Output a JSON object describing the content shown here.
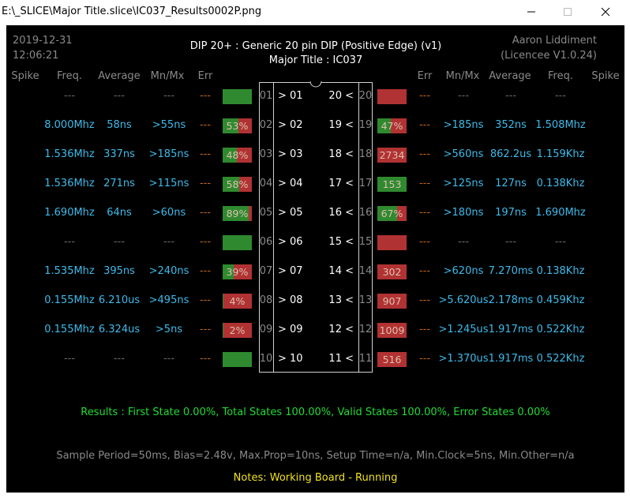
{
  "window": {
    "title": "E:\\_SLICE\\Major Title.slice\\IC037_Results0002P.png",
    "min_icon": "minimize-icon",
    "max_icon": "maximize-icon",
    "close_icon": "close-icon"
  },
  "header": {
    "date": "2019-12-31",
    "time": "12:06:21",
    "chip_title": "DIP 20+  :  Generic 20 pin DIP (Positive Edge) (v1)",
    "major_title": "Major Title : IC037",
    "author": "Aaron Liddiment",
    "licence": "(Licencee V1.0.24)"
  },
  "columns": {
    "spike": "Spike",
    "freq": "Freq.",
    "average": "Average",
    "mnmx": "Mn/Mx",
    "err": "Err"
  },
  "left_pins": [
    {
      "num": "01",
      "label": "> 01",
      "freq": "---",
      "avg": "---",
      "mnmx": "---",
      "err": "---",
      "bar": {
        "text": "",
        "pct": 100
      }
    },
    {
      "num": "02",
      "label": "> 02",
      "freq": "8.000Mhz",
      "avg": "58ns",
      "mnmx": ">55ns",
      "err": "---",
      "bar": {
        "text": "53%",
        "pct": 53
      }
    },
    {
      "num": "03",
      "label": "> 03",
      "freq": "1.536Mhz",
      "avg": "337ns",
      "mnmx": ">185ns",
      "err": "---",
      "bar": {
        "text": "48%",
        "pct": 48
      }
    },
    {
      "num": "04",
      "label": "> 04",
      "freq": "1.536Mhz",
      "avg": "271ns",
      "mnmx": ">115ns",
      "err": "---",
      "bar": {
        "text": "58%",
        "pct": 58
      }
    },
    {
      "num": "05",
      "label": "> 05",
      "freq": "1.690Mhz",
      "avg": "64ns",
      "mnmx": ">60ns",
      "err": "---",
      "bar": {
        "text": "89%",
        "pct": 89
      }
    },
    {
      "num": "06",
      "label": "> 06",
      "freq": "---",
      "avg": "---",
      "mnmx": "---",
      "err": "---",
      "bar": {
        "text": "",
        "pct": 100
      }
    },
    {
      "num": "07",
      "label": "> 07",
      "freq": "1.535Mhz",
      "avg": "395ns",
      "mnmx": ">240ns",
      "err": "---",
      "bar": {
        "text": "39%",
        "pct": 39
      }
    },
    {
      "num": "08",
      "label": "> 08",
      "freq": "0.155Mhz",
      "avg": "6.210us",
      "mnmx": ">495ns",
      "err": "---",
      "bar": {
        "text": "4%",
        "pct": 4
      }
    },
    {
      "num": "09",
      "label": "> 09",
      "freq": "0.155Mhz",
      "avg": "6.324us",
      "mnmx": ">5ns",
      "err": "---",
      "bar": {
        "text": "2%",
        "pct": 2
      }
    },
    {
      "num": "10",
      "label": "> 10",
      "freq": "---",
      "avg": "---",
      "mnmx": "---",
      "err": "---",
      "bar": {
        "text": "",
        "pct": 100
      }
    }
  ],
  "right_pins": [
    {
      "num": "20",
      "label": "20 <",
      "freq": "---",
      "avg": "---",
      "mnmx": "---",
      "err": "---",
      "bar": {
        "text": "",
        "pct": 0
      }
    },
    {
      "num": "19",
      "label": "19 <",
      "freq": "1.508Mhz",
      "avg": "352ns",
      "mnmx": ">185ns",
      "err": "---",
      "bar": {
        "text": "47%",
        "pct": 47
      }
    },
    {
      "num": "18",
      "label": "18 <",
      "freq": "1.159Khz",
      "avg": "862.2us",
      "mnmx": ">560ns",
      "err": "---",
      "bar": {
        "text": "2734",
        "pct": 0
      }
    },
    {
      "num": "17",
      "label": "17 <",
      "freq": "0.138Khz",
      "avg": "127ns",
      "mnmx": ">125ns",
      "err": "---",
      "bar": {
        "text": "153",
        "pct": 100
      }
    },
    {
      "num": "16",
      "label": "16 <",
      "freq": "1.690Mhz",
      "avg": "197ns",
      "mnmx": ">180ns",
      "err": "---",
      "bar": {
        "text": "67%",
        "pct": 67
      }
    },
    {
      "num": "15",
      "label": "15 <",
      "freq": "---",
      "avg": "---",
      "mnmx": "---",
      "err": "---",
      "bar": {
        "text": "",
        "pct": 0
      }
    },
    {
      "num": "14",
      "label": "14 <",
      "freq": "0.138Khz",
      "avg": "7.270ms",
      "mnmx": ">620ns",
      "err": "---",
      "bar": {
        "text": "302",
        "pct": 0
      }
    },
    {
      "num": "13",
      "label": "13 <",
      "freq": "0.459Khz",
      "avg": "2.178ms",
      "mnmx": ">5.620us",
      "err": "---",
      "bar": {
        "text": "907",
        "pct": 0
      }
    },
    {
      "num": "12",
      "label": "12 <",
      "freq": "0.522Khz",
      "avg": "1.917ms",
      "mnmx": ">1.245us",
      "err": "---",
      "bar": {
        "text": "1009",
        "pct": 0
      }
    },
    {
      "num": "11",
      "label": "11 <",
      "freq": "0.522Khz",
      "avg": "1.917ms",
      "mnmx": ">1.370us",
      "err": "---",
      "bar": {
        "text": "516",
        "pct": 0
      }
    }
  ],
  "results": "Results  :  First State 0.00%,  Total States 100.00%,  Valid States 100.00%,  Error States 0.00%",
  "settings": "Sample Period=50ms,  Bias=2.48v,  Max.Prop=10ns,  Setup Time=n/a,  Min.Clock=5ns,  Min.Other=n/a",
  "notes": "Notes:  Working Board - Running",
  "colors": {
    "background": "#000000",
    "value_cyan": "#3dbbea",
    "err_orange": "#c0641a",
    "results_green": "#1fdc34",
    "notes_yellow": "#f0e21b",
    "bar_green": "#2f8a2f",
    "bar_red": "#b13232"
  }
}
